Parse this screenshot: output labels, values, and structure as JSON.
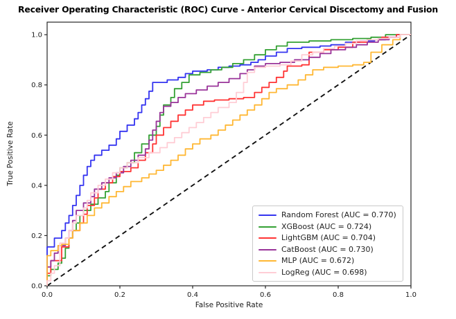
{
  "figure": {
    "background": "#ffffff",
    "axis_color": "#262626",
    "text_color": "#1a1a1a"
  },
  "chart_data": {
    "type": "line",
    "subtype": "roc-step-curves",
    "title": "Receiver Operating Characteristic (ROC) Curve - Anterior Cervical Discectomy and Fusion",
    "xlabel": "False Positive Rate",
    "ylabel": "True Positive Rate",
    "xlim": [
      0.0,
      1.0
    ],
    "ylim": [
      0.0,
      1.05
    ],
    "xticks": [
      0.0,
      0.2,
      0.4,
      0.6,
      0.8,
      1.0
    ],
    "yticks": [
      0.0,
      0.2,
      0.4,
      0.6,
      0.8,
      1.0
    ],
    "grid": false,
    "legend_position": "lower right",
    "series": [
      {
        "name": "Random Forest",
        "auc": 0.77,
        "label": "Random Forest (AUC = 0.770)",
        "color": "#3333f0",
        "points": [
          [
            0,
            0
          ],
          [
            0,
            0.155
          ],
          [
            0.02,
            0.155
          ],
          [
            0.02,
            0.19
          ],
          [
            0.04,
            0.22
          ],
          [
            0.05,
            0.25
          ],
          [
            0.06,
            0.28
          ],
          [
            0.07,
            0.32
          ],
          [
            0.08,
            0.36
          ],
          [
            0.09,
            0.4
          ],
          [
            0.1,
            0.44
          ],
          [
            0.11,
            0.475
          ],
          [
            0.12,
            0.5
          ],
          [
            0.13,
            0.52
          ],
          [
            0.15,
            0.54
          ],
          [
            0.17,
            0.56
          ],
          [
            0.19,
            0.585
          ],
          [
            0.2,
            0.615
          ],
          [
            0.22,
            0.64
          ],
          [
            0.24,
            0.665
          ],
          [
            0.25,
            0.69
          ],
          [
            0.26,
            0.72
          ],
          [
            0.27,
            0.745
          ],
          [
            0.28,
            0.775
          ],
          [
            0.29,
            0.81
          ],
          [
            0.33,
            0.82
          ],
          [
            0.36,
            0.83
          ],
          [
            0.38,
            0.845
          ],
          [
            0.4,
            0.855
          ],
          [
            0.44,
            0.86
          ],
          [
            0.47,
            0.87
          ],
          [
            0.5,
            0.875
          ],
          [
            0.53,
            0.88
          ],
          [
            0.56,
            0.89
          ],
          [
            0.58,
            0.9
          ],
          [
            0.6,
            0.915
          ],
          [
            0.63,
            0.93
          ],
          [
            0.66,
            0.945
          ],
          [
            0.7,
            0.95
          ],
          [
            0.75,
            0.955
          ],
          [
            0.78,
            0.96
          ],
          [
            0.82,
            0.97
          ],
          [
            0.86,
            0.975
          ],
          [
            0.9,
            0.98
          ],
          [
            0.93,
            0.99
          ],
          [
            0.96,
            1.0
          ],
          [
            1,
            1
          ]
        ]
      },
      {
        "name": "XGBoost",
        "auc": 0.724,
        "label": "XGBoost (AUC = 0.724)",
        "color": "#33a033",
        "points": [
          [
            0,
            0
          ],
          [
            0,
            0.04
          ],
          [
            0.01,
            0.065
          ],
          [
            0.03,
            0.09
          ],
          [
            0.04,
            0.11
          ],
          [
            0.05,
            0.15
          ],
          [
            0.06,
            0.19
          ],
          [
            0.07,
            0.22
          ],
          [
            0.08,
            0.25
          ],
          [
            0.09,
            0.28
          ],
          [
            0.1,
            0.3
          ],
          [
            0.12,
            0.325
          ],
          [
            0.14,
            0.35
          ],
          [
            0.16,
            0.375
          ],
          [
            0.17,
            0.41
          ],
          [
            0.19,
            0.44
          ],
          [
            0.2,
            0.47
          ],
          [
            0.22,
            0.49
          ],
          [
            0.24,
            0.53
          ],
          [
            0.26,
            0.565
          ],
          [
            0.28,
            0.6
          ],
          [
            0.3,
            0.635
          ],
          [
            0.31,
            0.68
          ],
          [
            0.32,
            0.72
          ],
          [
            0.34,
            0.75
          ],
          [
            0.35,
            0.785
          ],
          [
            0.37,
            0.81
          ],
          [
            0.39,
            0.84
          ],
          [
            0.42,
            0.85
          ],
          [
            0.45,
            0.86
          ],
          [
            0.48,
            0.87
          ],
          [
            0.51,
            0.885
          ],
          [
            0.54,
            0.9
          ],
          [
            0.57,
            0.92
          ],
          [
            0.6,
            0.94
          ],
          [
            0.63,
            0.955
          ],
          [
            0.66,
            0.97
          ],
          [
            0.72,
            0.975
          ],
          [
            0.78,
            0.98
          ],
          [
            0.84,
            0.985
          ],
          [
            0.89,
            0.99
          ],
          [
            0.93,
            1.0
          ],
          [
            1,
            1
          ]
        ]
      },
      {
        "name": "LightGBM",
        "auc": 0.704,
        "label": "LightGBM (AUC = 0.704)",
        "color": "#ff3333",
        "points": [
          [
            0,
            0
          ],
          [
            0,
            0.05
          ],
          [
            0.01,
            0.05
          ],
          [
            0.01,
            0.1
          ],
          [
            0.04,
            0.105
          ],
          [
            0.04,
            0.155
          ],
          [
            0.06,
            0.19
          ],
          [
            0.07,
            0.22
          ],
          [
            0.09,
            0.25
          ],
          [
            0.1,
            0.285
          ],
          [
            0.11,
            0.32
          ],
          [
            0.13,
            0.35
          ],
          [
            0.14,
            0.385
          ],
          [
            0.16,
            0.41
          ],
          [
            0.18,
            0.435
          ],
          [
            0.2,
            0.455
          ],
          [
            0.23,
            0.47
          ],
          [
            0.25,
            0.5
          ],
          [
            0.27,
            0.53
          ],
          [
            0.29,
            0.565
          ],
          [
            0.3,
            0.6
          ],
          [
            0.32,
            0.63
          ],
          [
            0.34,
            0.655
          ],
          [
            0.36,
            0.68
          ],
          [
            0.38,
            0.7
          ],
          [
            0.4,
            0.72
          ],
          [
            0.43,
            0.735
          ],
          [
            0.46,
            0.74
          ],
          [
            0.5,
            0.745
          ],
          [
            0.54,
            0.75
          ],
          [
            0.57,
            0.77
          ],
          [
            0.59,
            0.79
          ],
          [
            0.61,
            0.81
          ],
          [
            0.63,
            0.83
          ],
          [
            0.65,
            0.855
          ],
          [
            0.66,
            0.875
          ],
          [
            0.7,
            0.88
          ],
          [
            0.72,
            0.93
          ],
          [
            0.76,
            0.94
          ],
          [
            0.8,
            0.95
          ],
          [
            0.84,
            0.97
          ],
          [
            0.88,
            0.98
          ],
          [
            0.92,
            0.99
          ],
          [
            0.96,
            1.0
          ],
          [
            1,
            1
          ]
        ]
      },
      {
        "name": "CatBoost",
        "auc": 0.73,
        "label": "CatBoost (AUC = 0.730)",
        "color": "#993399",
        "points": [
          [
            0,
            0
          ],
          [
            0,
            0.075
          ],
          [
            0.01,
            0.1
          ],
          [
            0.02,
            0.13
          ],
          [
            0.03,
            0.16
          ],
          [
            0.05,
            0.19
          ],
          [
            0.06,
            0.22
          ],
          [
            0.07,
            0.26
          ],
          [
            0.08,
            0.3
          ],
          [
            0.1,
            0.33
          ],
          [
            0.12,
            0.355
          ],
          [
            0.13,
            0.385
          ],
          [
            0.15,
            0.41
          ],
          [
            0.17,
            0.43
          ],
          [
            0.19,
            0.45
          ],
          [
            0.21,
            0.475
          ],
          [
            0.23,
            0.5
          ],
          [
            0.25,
            0.52
          ],
          [
            0.27,
            0.545
          ],
          [
            0.28,
            0.58
          ],
          [
            0.29,
            0.62
          ],
          [
            0.3,
            0.655
          ],
          [
            0.31,
            0.69
          ],
          [
            0.32,
            0.715
          ],
          [
            0.34,
            0.73
          ],
          [
            0.36,
            0.75
          ],
          [
            0.38,
            0.765
          ],
          [
            0.41,
            0.78
          ],
          [
            0.44,
            0.795
          ],
          [
            0.47,
            0.81
          ],
          [
            0.5,
            0.825
          ],
          [
            0.53,
            0.845
          ],
          [
            0.55,
            0.86
          ],
          [
            0.57,
            0.875
          ],
          [
            0.6,
            0.885
          ],
          [
            0.64,
            0.89
          ],
          [
            0.68,
            0.9
          ],
          [
            0.72,
            0.91
          ],
          [
            0.75,
            0.925
          ],
          [
            0.78,
            0.94
          ],
          [
            0.82,
            0.95
          ],
          [
            0.85,
            0.96
          ],
          [
            0.88,
            0.97
          ],
          [
            0.91,
            0.98
          ],
          [
            0.94,
            0.99
          ],
          [
            0.97,
            1.0
          ],
          [
            1,
            1
          ]
        ]
      },
      {
        "name": "MLP",
        "auc": 0.672,
        "label": "MLP (AUC = 0.672)",
        "color": "#ffb733",
        "points": [
          [
            0,
            0
          ],
          [
            0,
            0.12
          ],
          [
            0.01,
            0.14
          ],
          [
            0.03,
            0.16
          ],
          [
            0.04,
            0.165
          ],
          [
            0.06,
            0.19
          ],
          [
            0.07,
            0.22
          ],
          [
            0.09,
            0.25
          ],
          [
            0.11,
            0.28
          ],
          [
            0.13,
            0.31
          ],
          [
            0.15,
            0.33
          ],
          [
            0.17,
            0.355
          ],
          [
            0.19,
            0.375
          ],
          [
            0.21,
            0.395
          ],
          [
            0.23,
            0.415
          ],
          [
            0.26,
            0.43
          ],
          [
            0.28,
            0.445
          ],
          [
            0.3,
            0.46
          ],
          [
            0.32,
            0.48
          ],
          [
            0.34,
            0.5
          ],
          [
            0.36,
            0.52
          ],
          [
            0.38,
            0.545
          ],
          [
            0.4,
            0.565
          ],
          [
            0.42,
            0.585
          ],
          [
            0.45,
            0.6
          ],
          [
            0.47,
            0.62
          ],
          [
            0.49,
            0.64
          ],
          [
            0.51,
            0.66
          ],
          [
            0.53,
            0.68
          ],
          [
            0.55,
            0.7
          ],
          [
            0.57,
            0.72
          ],
          [
            0.59,
            0.745
          ],
          [
            0.61,
            0.77
          ],
          [
            0.63,
            0.785
          ],
          [
            0.66,
            0.8
          ],
          [
            0.69,
            0.82
          ],
          [
            0.71,
            0.84
          ],
          [
            0.73,
            0.86
          ],
          [
            0.76,
            0.87
          ],
          [
            0.8,
            0.875
          ],
          [
            0.84,
            0.88
          ],
          [
            0.87,
            0.89
          ],
          [
            0.89,
            0.93
          ],
          [
            0.92,
            0.96
          ],
          [
            0.95,
            0.98
          ],
          [
            0.97,
            1.0
          ],
          [
            1,
            1
          ]
        ]
      },
      {
        "name": "LogReg",
        "auc": 0.698,
        "label": "LogReg (AUC = 0.698)",
        "color": "#ffcdd5",
        "points": [
          [
            0,
            0
          ],
          [
            0,
            0.02
          ],
          [
            0.01,
            0.05
          ],
          [
            0.02,
            0.08
          ],
          [
            0.035,
            0.08
          ],
          [
            0.035,
            0.17
          ],
          [
            0.05,
            0.19
          ],
          [
            0.06,
            0.22
          ],
          [
            0.07,
            0.25
          ],
          [
            0.08,
            0.28
          ],
          [
            0.1,
            0.31
          ],
          [
            0.11,
            0.34
          ],
          [
            0.12,
            0.37
          ],
          [
            0.14,
            0.4
          ],
          [
            0.16,
            0.425
          ],
          [
            0.18,
            0.45
          ],
          [
            0.2,
            0.47
          ],
          [
            0.22,
            0.49
          ],
          [
            0.25,
            0.51
          ],
          [
            0.28,
            0.53
          ],
          [
            0.31,
            0.55
          ],
          [
            0.33,
            0.57
          ],
          [
            0.35,
            0.59
          ],
          [
            0.37,
            0.61
          ],
          [
            0.39,
            0.63
          ],
          [
            0.41,
            0.65
          ],
          [
            0.43,
            0.67
          ],
          [
            0.45,
            0.69
          ],
          [
            0.47,
            0.71
          ],
          [
            0.5,
            0.73
          ],
          [
            0.52,
            0.77
          ],
          [
            0.54,
            0.81
          ],
          [
            0.55,
            0.85
          ],
          [
            0.57,
            0.87
          ],
          [
            0.6,
            0.875
          ],
          [
            0.64,
            0.88
          ],
          [
            0.67,
            0.895
          ],
          [
            0.7,
            0.92
          ],
          [
            0.73,
            0.93
          ],
          [
            0.76,
            0.945
          ],
          [
            0.79,
            0.955
          ],
          [
            0.82,
            0.965
          ],
          [
            0.85,
            0.975
          ],
          [
            0.88,
            0.98
          ],
          [
            0.91,
            0.985
          ],
          [
            0.94,
            0.99
          ],
          [
            0.97,
            1.0
          ],
          [
            1,
            1
          ]
        ]
      }
    ],
    "reference_line": {
      "name": "chance-diagonal",
      "color": "#111111",
      "dash": [
        7,
        5
      ],
      "points": [
        [
          0,
          0
        ],
        [
          1,
          1
        ]
      ]
    }
  }
}
